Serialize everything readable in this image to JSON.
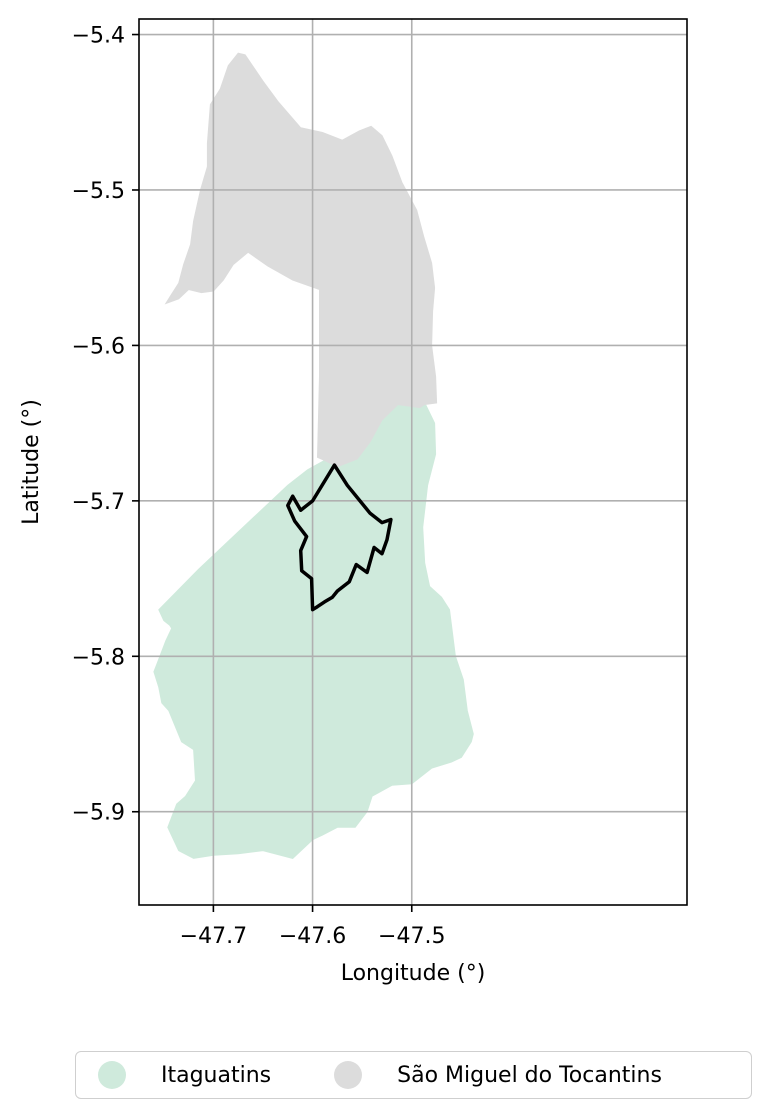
{
  "chart_data": {
    "type": "map",
    "xlabel": "Longitude (°)",
    "ylabel": "Latitude (°)",
    "xlim": [
      -47.775,
      -47.2225
    ],
    "ylim": [
      -5.96,
      -5.39
    ],
    "xticks": [
      -47.7,
      -47.6,
      -47.5
    ],
    "xtick_labels": [
      "−47.7",
      "−47.6",
      "−47.5"
    ],
    "yticks": [
      -5.4,
      -5.5,
      -5.6,
      -5.7,
      -5.8,
      -5.9
    ],
    "ytick_labels": [
      "−5.4",
      "−5.5",
      "−5.6",
      "−5.7",
      "−5.8",
      "−5.9"
    ],
    "grid": true,
    "legend_position": "bottom",
    "regions": [
      {
        "name": "Itaguatins",
        "color": "#cfeadc",
        "polygon": [
          [
            -47.755,
            -5.77
          ],
          [
            -47.715,
            -5.744
          ],
          [
            -47.68,
            -5.723
          ],
          [
            -47.65,
            -5.705
          ],
          [
            -47.625,
            -5.69
          ],
          [
            -47.605,
            -5.68
          ],
          [
            -47.588,
            -5.674
          ],
          [
            -47.575,
            -5.678
          ],
          [
            -47.555,
            -5.673
          ],
          [
            -47.542,
            -5.662
          ],
          [
            -47.53,
            -5.648
          ],
          [
            -47.514,
            -5.638
          ],
          [
            -47.492,
            -5.64
          ],
          [
            -47.486,
            -5.638
          ],
          [
            -47.477,
            -5.65
          ],
          [
            -47.476,
            -5.67
          ],
          [
            -47.484,
            -5.69
          ],
          [
            -47.489,
            -5.717
          ],
          [
            -47.487,
            -5.74
          ],
          [
            -47.482,
            -5.755
          ],
          [
            -47.47,
            -5.762
          ],
          [
            -47.462,
            -5.77
          ],
          [
            -47.456,
            -5.8
          ],
          [
            -47.448,
            -5.815
          ],
          [
            -47.444,
            -5.835
          ],
          [
            -47.438,
            -5.85
          ],
          [
            -47.44,
            -5.855
          ],
          [
            -47.45,
            -5.865
          ],
          [
            -47.46,
            -5.868
          ],
          [
            -47.48,
            -5.872
          ],
          [
            -47.5,
            -5.882
          ],
          [
            -47.52,
            -5.883
          ],
          [
            -47.54,
            -5.89
          ],
          [
            -47.545,
            -5.9
          ],
          [
            -47.557,
            -5.91
          ],
          [
            -47.575,
            -5.91
          ],
          [
            -47.59,
            -5.915
          ],
          [
            -47.6,
            -5.918
          ],
          [
            -47.62,
            -5.93
          ],
          [
            -47.65,
            -5.925
          ],
          [
            -47.675,
            -5.927
          ],
          [
            -47.7,
            -5.928
          ],
          [
            -47.72,
            -5.93
          ],
          [
            -47.735,
            -5.925
          ],
          [
            -47.746,
            -5.91
          ],
          [
            -47.737,
            -5.895
          ],
          [
            -47.728,
            -5.89
          ],
          [
            -47.718,
            -5.88
          ],
          [
            -47.72,
            -5.86
          ],
          [
            -47.732,
            -5.855
          ],
          [
            -47.745,
            -5.835
          ],
          [
            -47.752,
            -5.83
          ],
          [
            -47.755,
            -5.82
          ],
          [
            -47.76,
            -5.81
          ],
          [
            -47.757,
            -5.805
          ],
          [
            -47.748,
            -5.79
          ],
          [
            -47.742,
            -5.782
          ],
          [
            -47.744,
            -5.78
          ],
          [
            -47.75,
            -5.777
          ]
        ]
      },
      {
        "name": "São Miguel do Tocantins",
        "color": "#dcdcdc",
        "polygon": [
          [
            -47.748,
            -5.573
          ],
          [
            -47.743,
            -5.568
          ],
          [
            -47.735,
            -5.56
          ],
          [
            -47.73,
            -5.548
          ],
          [
            -47.723,
            -5.535
          ],
          [
            -47.72,
            -5.52
          ],
          [
            -47.713,
            -5.5
          ],
          [
            -47.706,
            -5.485
          ],
          [
            -47.706,
            -5.47
          ],
          [
            -47.703,
            -5.445
          ],
          [
            -47.693,
            -5.435
          ],
          [
            -47.685,
            -5.42
          ],
          [
            -47.675,
            -5.412
          ],
          [
            -47.668,
            -5.413
          ],
          [
            -47.65,
            -5.43
          ],
          [
            -47.635,
            -5.443
          ],
          [
            -47.612,
            -5.46
          ],
          [
            -47.59,
            -5.463
          ],
          [
            -47.57,
            -5.468
          ],
          [
            -47.553,
            -5.462
          ],
          [
            -47.541,
            -5.459
          ],
          [
            -47.53,
            -5.465
          ],
          [
            -47.52,
            -5.478
          ],
          [
            -47.51,
            -5.495
          ],
          [
            -47.495,
            -5.513
          ],
          [
            -47.488,
            -5.53
          ],
          [
            -47.48,
            -5.547
          ],
          [
            -47.477,
            -5.563
          ],
          [
            -47.479,
            -5.578
          ],
          [
            -47.48,
            -5.6
          ],
          [
            -47.476,
            -5.62
          ],
          [
            -47.475,
            -5.637
          ],
          [
            -47.487,
            -5.638
          ],
          [
            -47.492,
            -5.64
          ],
          [
            -47.514,
            -5.638
          ],
          [
            -47.53,
            -5.648
          ],
          [
            -47.542,
            -5.662
          ],
          [
            -47.555,
            -5.673
          ],
          [
            -47.575,
            -5.678
          ],
          [
            -47.588,
            -5.674
          ],
          [
            -47.595,
            -5.672
          ],
          [
            -47.593,
            -5.62
          ],
          [
            -47.593,
            -5.564
          ],
          [
            -47.62,
            -5.558
          ],
          [
            -47.645,
            -5.549
          ],
          [
            -47.665,
            -5.54
          ],
          [
            -47.68,
            -5.548
          ],
          [
            -47.69,
            -5.558
          ],
          [
            -47.7,
            -5.565
          ],
          [
            -47.712,
            -5.566
          ],
          [
            -47.725,
            -5.564
          ],
          [
            -47.735,
            -5.57
          ]
        ]
      }
    ],
    "outline": {
      "color": "#000000",
      "polygon": [
        [
          -47.6,
          -5.77
        ],
        [
          -47.601,
          -5.75
        ],
        [
          -47.611,
          -5.745
        ],
        [
          -47.612,
          -5.732
        ],
        [
          -47.606,
          -5.723
        ],
        [
          -47.618,
          -5.713
        ],
        [
          -47.625,
          -5.703
        ],
        [
          -47.62,
          -5.697
        ],
        [
          -47.612,
          -5.706
        ],
        [
          -47.6,
          -5.7
        ],
        [
          -47.578,
          -5.677
        ],
        [
          -47.565,
          -5.69
        ],
        [
          -47.542,
          -5.708
        ],
        [
          -47.53,
          -5.714
        ],
        [
          -47.521,
          -5.712
        ],
        [
          -47.525,
          -5.725
        ],
        [
          -47.53,
          -5.734
        ],
        [
          -47.538,
          -5.73
        ],
        [
          -47.545,
          -5.746
        ],
        [
          -47.556,
          -5.741
        ],
        [
          -47.563,
          -5.752
        ],
        [
          -47.575,
          -5.758
        ],
        [
          -47.58,
          -5.762
        ],
        [
          -47.588,
          -5.765
        ],
        [
          -47.595,
          -5.768
        ]
      ]
    },
    "legend": [
      {
        "label": "Itaguatins",
        "color": "#cfeadc"
      },
      {
        "label": "São Miguel do Tocantins",
        "color": "#dcdcdc"
      }
    ]
  }
}
